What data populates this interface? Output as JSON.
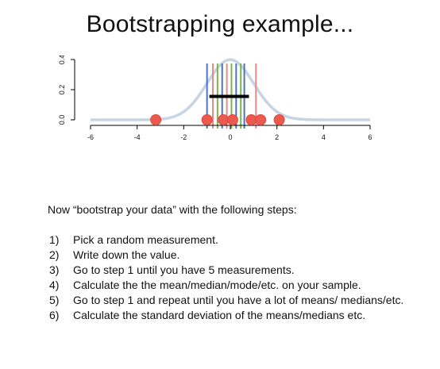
{
  "slide": {
    "title": "Bootstrapping example...",
    "intro": "Now “bootstrap your data” with the following steps:",
    "steps": [
      {
        "num": "1)",
        "text": "Pick a random measurement."
      },
      {
        "num": "2)",
        "text": "Write down the value."
      },
      {
        "num": "3)",
        "text": "Go to step 1 until you have 5 measurements."
      },
      {
        "num": "4)",
        "text": "Calculate the the mean/median/mode/etc. on your sample."
      },
      {
        "num": "5)",
        "text": "Go to step 1 and repeat until you have a lot of means/ medians/etc."
      },
      {
        "num": "6)",
        "text": "Calculate the standard deviation of the means/medians etc."
      }
    ]
  },
  "chart_data": {
    "type": "scatter",
    "x_ticks": [
      -6,
      -4,
      -2,
      0,
      2,
      4,
      6
    ],
    "x_tick_labels": [
      "-6",
      "-4",
      "-2",
      "0",
      "2",
      "4",
      "6"
    ],
    "y_ticks": [
      0.0,
      0.2,
      0.4
    ],
    "y_tick_labels": [
      "0.0",
      "0.2",
      "0.4"
    ],
    "xlim": [
      -6,
      6
    ],
    "ylim": [
      0,
      0.4
    ],
    "density_curve": {
      "mean": 0,
      "sd": 1,
      "color": "#c5d5e6"
    },
    "points": [
      {
        "x": -3.2,
        "y": 0
      },
      {
        "x": -1.0,
        "y": 0
      },
      {
        "x": -0.3,
        "y": 0
      },
      {
        "x": 0.1,
        "y": 0
      },
      {
        "x": 0.9,
        "y": 0
      },
      {
        "x": 1.3,
        "y": 0
      },
      {
        "x": 2.1,
        "y": 0
      }
    ],
    "point_color": "#ec5a4f",
    "sample_lines": [
      {
        "x": -1.0,
        "color": "#4a73c2"
      },
      {
        "x": -0.75,
        "color": "#e88a8a"
      },
      {
        "x": -0.55,
        "color": "#7ab648"
      },
      {
        "x": -0.35,
        "color": "#4a73c2"
      },
      {
        "x": -0.15,
        "color": "#e88a8a"
      },
      {
        "x": 0.05,
        "color": "#7ab648"
      },
      {
        "x": 0.25,
        "color": "#4a73c2"
      },
      {
        "x": 0.45,
        "color": "#7ab648"
      },
      {
        "x": 0.6,
        "color": "#4a73c2"
      },
      {
        "x": 1.1,
        "color": "#e88a8a"
      }
    ],
    "sd_bar": {
      "x_start": -0.9,
      "x_end": 0.8,
      "y": 0.155,
      "color": "#000000"
    }
  }
}
